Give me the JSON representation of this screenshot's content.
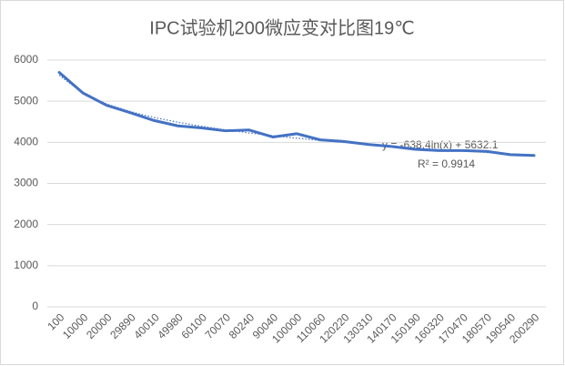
{
  "chart_data": {
    "type": "line",
    "title": "IPC试验机200微应变对比图19℃",
    "categories": [
      "100",
      "10000",
      "20000",
      "29890",
      "40010",
      "49980",
      "60100",
      "70070",
      "80240",
      "90040",
      "100000",
      "110060",
      "120220",
      "130310",
      "140170",
      "150190",
      "160320",
      "170470",
      "180570",
      "190540",
      "200290"
    ],
    "series": [
      {
        "color": "#4472c4",
        "values": [
          5700,
          5200,
          4900,
          4720,
          4530,
          4400,
          4350,
          4280,
          4300,
          4130,
          4210,
          4060,
          4020,
          3950,
          3900,
          3830,
          3800,
          3800,
          3780,
          3700,
          3680
        ]
      }
    ],
    "trendline": {
      "equation": "y = -638.4ln(x) + 5632.1",
      "r2": "R² = 0.9914",
      "color": "#4472c4",
      "values": [
        5632,
        5190,
        4931,
        4747,
        4605,
        4488,
        4390,
        4305,
        4229,
        4162,
        4101,
        4046,
        3995,
        3947,
        3903,
        3862,
        3823,
        3787,
        3752,
        3720,
        3689
      ]
    },
    "ylim": [
      0,
      6000
    ],
    "yticks": [
      0,
      1000,
      2000,
      3000,
      4000,
      5000,
      6000
    ],
    "grid": true
  }
}
